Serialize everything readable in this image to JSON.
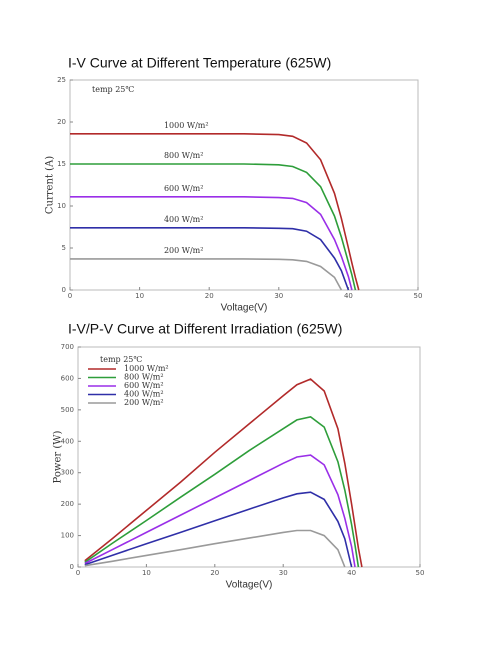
{
  "chart_data": [
    {
      "type": "line",
      "title": "I-V Curve at Different Temperature (625W)",
      "annotation": "temp 25℃",
      "x_label": "Voltage(V)",
      "y_label": "Current (A)",
      "xlim": [
        0,
        50
      ],
      "ylim": [
        0,
        25
      ],
      "xticks": [
        0,
        10,
        20,
        30,
        40,
        50
      ],
      "yticks": [
        0,
        5,
        10,
        15,
        20,
        25
      ],
      "grid": false,
      "legend": "inline",
      "x": [
        0,
        5,
        10,
        15,
        20,
        25,
        30,
        32,
        34,
        36,
        38,
        39,
        40,
        40.5,
        41,
        41.5
      ],
      "series": [
        {
          "name": "1000 W/m²",
          "color": "#b22a2a",
          "values": [
            18.6,
            18.6,
            18.6,
            18.6,
            18.6,
            18.6,
            18.5,
            18.3,
            17.5,
            15.5,
            11.5,
            8.5,
            5,
            3.2,
            1.5,
            0
          ]
        },
        {
          "name": "800 W/m²",
          "color": "#2e9e3a",
          "values": [
            15,
            15,
            15,
            15,
            15,
            15,
            14.9,
            14.7,
            14,
            12.3,
            8.8,
            6.3,
            3.3,
            1.8,
            0,
            null
          ]
        },
        {
          "name": "600 W/m²",
          "color": "#9a2fe8",
          "values": [
            11.1,
            11.1,
            11.1,
            11.1,
            11.1,
            11.1,
            11,
            10.9,
            10.4,
            9,
            6,
            4,
            1.6,
            0,
            null,
            null
          ]
        },
        {
          "name": "400 W/m²",
          "color": "#2f2fa8",
          "values": [
            7.4,
            7.4,
            7.4,
            7.4,
            7.4,
            7.4,
            7.35,
            7.3,
            7,
            6,
            3.8,
            2.3,
            0,
            null,
            null,
            null
          ]
        },
        {
          "name": "200 W/m²",
          "color": "#9a9a9a",
          "values": [
            3.7,
            3.7,
            3.7,
            3.7,
            3.7,
            3.7,
            3.65,
            3.6,
            3.4,
            2.8,
            1.5,
            0,
            null,
            null,
            null,
            null
          ]
        }
      ]
    },
    {
      "type": "line",
      "title": "I-V/P-V Curve at Different Irradiation (625W)",
      "annotation": "temp 25℃",
      "x_label": "Voltage(V)",
      "y_label": "Power (W)",
      "xlim": [
        0,
        50
      ],
      "ylim": [
        0,
        700
      ],
      "xticks": [
        0,
        10,
        20,
        30,
        40,
        50
      ],
      "yticks": [
        0,
        100,
        200,
        300,
        400,
        500,
        600,
        700
      ],
      "grid": false,
      "legend": "upper left",
      "x": [
        1,
        5,
        10,
        15,
        20,
        25,
        30,
        32,
        34,
        36,
        38,
        39,
        40,
        40.5,
        41,
        41.5
      ],
      "series": [
        {
          "name": "1000 W/m²",
          "color": "#b22a2a",
          "values": [
            20,
            90,
            180,
            270,
            365,
            455,
            545,
            580,
            598,
            560,
            440,
            330,
            200,
            130,
            60,
            0
          ]
        },
        {
          "name": "800 W/m²",
          "color": "#2e9e3a",
          "values": [
            15,
            75,
            148,
            222,
            295,
            370,
            440,
            468,
            478,
            445,
            335,
            245,
            135,
            70,
            0,
            null
          ]
        },
        {
          "name": "600 W/m²",
          "color": "#9a2fe8",
          "values": [
            11,
            55,
            110,
            165,
            220,
            275,
            330,
            350,
            356,
            325,
            230,
            155,
            65,
            0,
            null,
            null
          ]
        },
        {
          "name": "400 W/m²",
          "color": "#2f2fa8",
          "values": [
            7,
            37,
            74,
            110,
            147,
            184,
            220,
            233,
            238,
            215,
            145,
            90,
            0,
            null,
            null,
            null
          ]
        },
        {
          "name": "200 W/m²",
          "color": "#9a9a9a",
          "values": [
            4,
            18,
            37,
            55,
            74,
            92,
            110,
            116,
            116,
            100,
            55,
            0,
            null,
            null,
            null,
            null
          ]
        }
      ]
    }
  ]
}
